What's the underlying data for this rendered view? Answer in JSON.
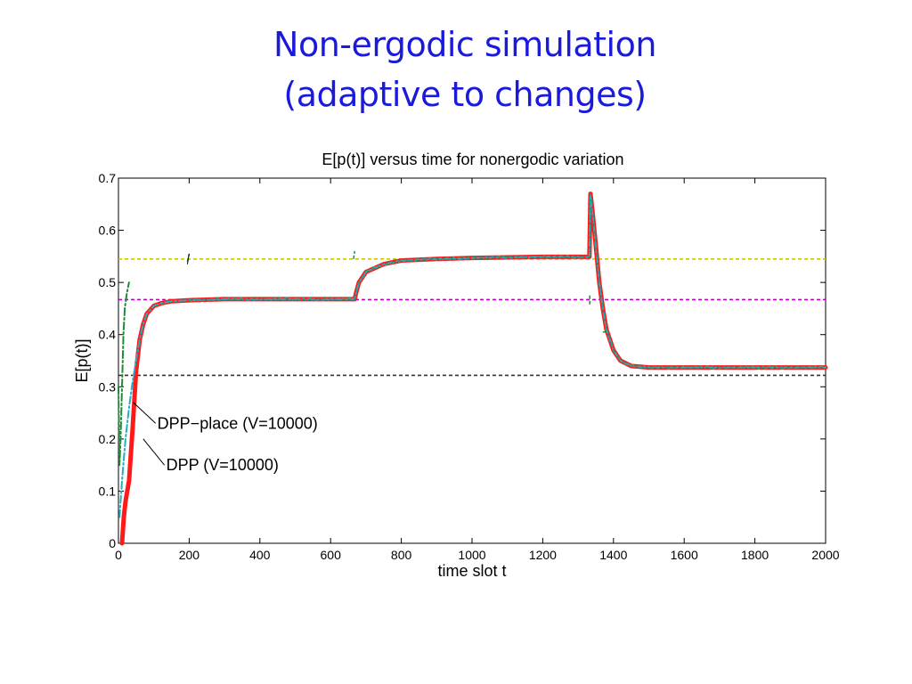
{
  "slide": {
    "title_line1": "Non-ergodic simulation",
    "title_line2": "(adaptive to changes)"
  },
  "chart_data": {
    "type": "line",
    "title": "E[p(t)] versus time for nonergodic variation",
    "xlabel": "time slot t",
    "ylabel": "E[p(t)]",
    "xlim": [
      0,
      2000
    ],
    "ylim": [
      0,
      0.7
    ],
    "xticks": [
      0,
      200,
      400,
      600,
      800,
      1000,
      1200,
      1400,
      1600,
      1800,
      2000
    ],
    "yticks": [
      0,
      0.1,
      0.2,
      0.3,
      0.4,
      0.5,
      0.6,
      0.7
    ],
    "ytick_labels": [
      "0",
      "0.1",
      "0.2",
      "0.3",
      "0.4",
      "0.5",
      "0.6",
      "0.7"
    ],
    "grid": false,
    "reference_lines": [
      {
        "y": 0.545,
        "color": "#c8c800"
      },
      {
        "y": 0.467,
        "color": "#c000c0"
      },
      {
        "y": 0.322,
        "color": "#333333"
      }
    ],
    "series": [
      {
        "color": "#ff1a1a",
        "style": "solid-thick",
        "x": [
          10,
          15,
          20,
          30,
          40,
          50,
          60,
          70,
          80,
          100,
          120,
          150,
          200,
          300,
          400,
          500,
          600,
          660,
          668,
          672,
          680,
          700,
          750,
          800,
          900,
          1000,
          1100,
          1200,
          1300,
          1332,
          1335,
          1340,
          1350,
          1360,
          1370,
          1380,
          1400,
          1420,
          1450,
          1500,
          1600,
          1700,
          1800,
          1900,
          2000
        ],
        "y": [
          0.0,
          0.05,
          0.08,
          0.12,
          0.22,
          0.33,
          0.39,
          0.42,
          0.44,
          0.455,
          0.46,
          0.464,
          0.466,
          0.468,
          0.468,
          0.468,
          0.468,
          0.468,
          0.468,
          0.48,
          0.5,
          0.52,
          0.535,
          0.542,
          0.545,
          0.547,
          0.548,
          0.549,
          0.549,
          0.549,
          0.67,
          0.64,
          0.57,
          0.5,
          0.45,
          0.41,
          0.37,
          0.35,
          0.34,
          0.337,
          0.337,
          0.337,
          0.337,
          0.337,
          0.337
        ]
      },
      {
        "color": "#20b0c0",
        "style": "dashdot",
        "x": [
          3,
          10,
          20,
          30,
          40,
          50,
          60,
          70,
          80,
          100,
          120,
          150,
          200,
          300,
          400,
          500,
          600,
          660,
          668,
          672,
          680,
          700,
          750,
          800,
          900,
          1000,
          1100,
          1200,
          1300,
          1332,
          1335,
          1340,
          1350,
          1360,
          1370,
          1380,
          1400,
          1420,
          1450,
          1500,
          1600,
          1700,
          1800,
          1900,
          2000
        ],
        "y": [
          0.05,
          0.12,
          0.2,
          0.26,
          0.31,
          0.35,
          0.39,
          0.42,
          0.44,
          0.455,
          0.46,
          0.464,
          0.466,
          0.468,
          0.468,
          0.468,
          0.468,
          0.468,
          0.468,
          0.48,
          0.5,
          0.52,
          0.535,
          0.542,
          0.545,
          0.547,
          0.548,
          0.549,
          0.549,
          0.549,
          0.67,
          0.64,
          0.57,
          0.5,
          0.45,
          0.41,
          0.37,
          0.35,
          0.34,
          0.337,
          0.337,
          0.337,
          0.337,
          0.337,
          0.337
        ]
      },
      {
        "color": "#1f8a3a",
        "style": "dashdot",
        "x": [
          0,
          3,
          6,
          10,
          14,
          18,
          24,
          30
        ],
        "y": [
          0.3,
          0.15,
          0.2,
          0.3,
          0.4,
          0.45,
          0.48,
          0.5
        ]
      }
    ],
    "annotations": [
      {
        "text": "DPP−place (V=10000)",
        "target": [
          42,
          0.27
        ],
        "anchor": [
          105,
          0.23
        ]
      },
      {
        "text": "DPP (V=10000)",
        "target": [
          70,
          0.2
        ],
        "anchor": [
          130,
          0.15
        ]
      }
    ]
  }
}
